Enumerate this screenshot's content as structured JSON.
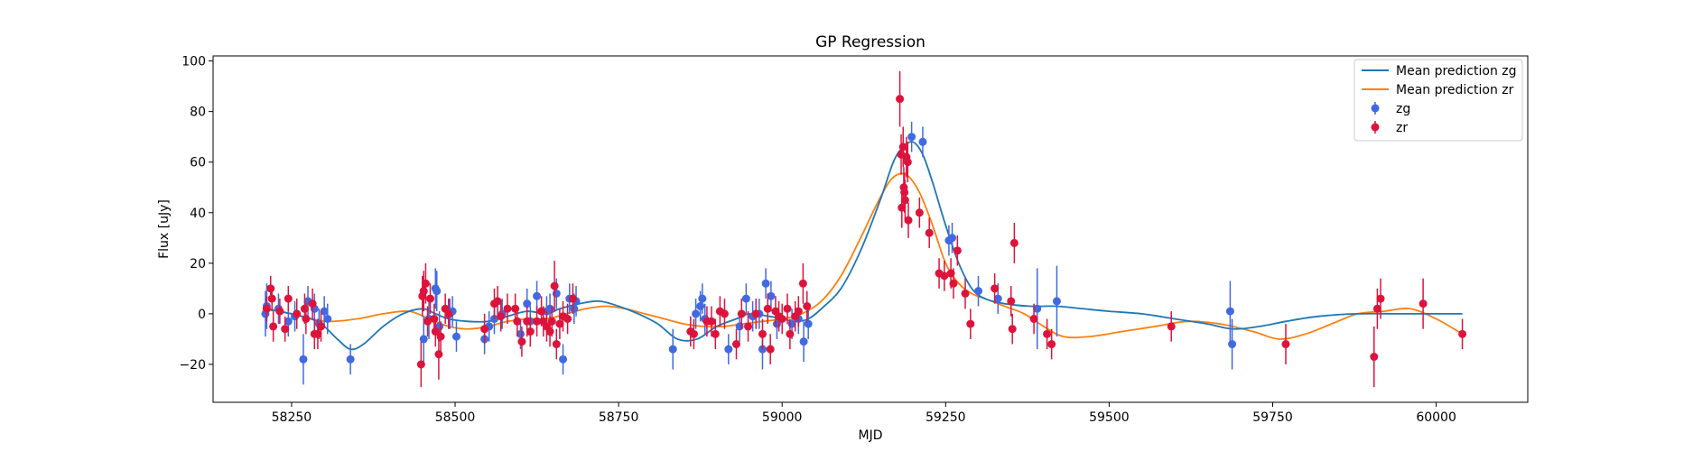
{
  "chart_data": {
    "type": "scatter",
    "title": "GP Regression",
    "xlabel": "MJD",
    "ylabel": "Flux [uJy]",
    "xlim": [
      58130,
      60140
    ],
    "ylim": [
      -35,
      102
    ],
    "xticks": [
      58250,
      58500,
      58750,
      59000,
      59250,
      59500,
      59750,
      60000
    ],
    "yticks": [
      -20,
      0,
      20,
      40,
      60,
      80,
      100
    ],
    "grid": false,
    "legend_position": "top-right",
    "colors": {
      "zg_line": "#1f77b4",
      "zr_line": "#ff7f0e",
      "zg_points": "#4169e1",
      "zr_points": "#dc143c"
    },
    "lines": [
      {
        "name": "Mean prediction zg",
        "x": [
          58210,
          58250,
          58280,
          58300,
          58320,
          58340,
          58360,
          58390,
          58420,
          58450,
          58470,
          58490,
          58520,
          58550,
          58580,
          58610,
          58640,
          58660,
          58690,
          58720,
          58750,
          58780,
          58810,
          58840,
          58870,
          58900,
          58930,
          58950,
          58980,
          59000,
          59020,
          59040,
          59060,
          59090,
          59120,
          59150,
          59170,
          59185,
          59200,
          59215,
          59230,
          59250,
          59270,
          59290,
          59310,
          59340,
          59380,
          59420,
          59460,
          59500,
          59550,
          59600,
          59650,
          59690,
          59730,
          59770,
          59820,
          59880,
          59950,
          60040
        ],
        "y": [
          2,
          0,
          -2,
          -5,
          -10,
          -14,
          -12,
          -5,
          0,
          2,
          0,
          -2,
          -3,
          -3,
          -1,
          1,
          0,
          2,
          4,
          5,
          3,
          0,
          -4,
          -10,
          -10,
          -5,
          -2,
          0,
          -1,
          -2,
          -3,
          -2,
          2,
          10,
          25,
          45,
          60,
          66,
          68,
          63,
          52,
          35,
          20,
          10,
          6,
          4,
          3,
          3,
          2,
          1,
          0,
          -2,
          -4,
          -6,
          -5,
          -3,
          -1,
          0,
          0,
          0
        ]
      },
      {
        "name": "Mean prediction zr",
        "x": [
          58210,
          58250,
          58280,
          58310,
          58350,
          58390,
          58430,
          58460,
          58490,
          58520,
          58550,
          58580,
          58610,
          58640,
          58670,
          58700,
          58730,
          58760,
          58790,
          58820,
          58850,
          58880,
          58910,
          58940,
          58970,
          59000,
          59030,
          59060,
          59090,
          59120,
          59150,
          59170,
          59190,
          59210,
          59230,
          59250,
          59270,
          59290,
          59310,
          59340,
          59370,
          59400,
          59430,
          59470,
          59520,
          59570,
          59620,
          59670,
          59720,
          59760,
          59800,
          59840,
          59880,
          59920,
          59960,
          60000,
          60040
        ],
        "y": [
          2,
          0,
          -2,
          -3,
          -2,
          0,
          1,
          -2,
          -5,
          -6,
          -5,
          -3,
          -2,
          -2,
          0,
          2,
          3,
          2,
          0,
          -2,
          -4,
          -5,
          -5,
          -4,
          -3,
          -2,
          0,
          5,
          15,
          30,
          46,
          54,
          55,
          48,
          35,
          20,
          12,
          8,
          6,
          3,
          0,
          -5,
          -9,
          -9,
          -7,
          -5,
          -3,
          -4,
          -7,
          -10,
          -8,
          -4,
          0,
          1,
          2,
          -2,
          -8
        ]
      }
    ],
    "series": [
      {
        "name": "zg",
        "points": [
          [
            58210,
            0,
            9
          ],
          [
            58212,
            3,
            9
          ],
          [
            58230,
            2,
            6
          ],
          [
            58245,
            -3,
            6
          ],
          [
            58255,
            -1,
            6
          ],
          [
            58268,
            -18,
            10
          ],
          [
            58275,
            5,
            6
          ],
          [
            58285,
            2,
            6
          ],
          [
            58292,
            -4,
            6
          ],
          [
            58300,
            1,
            6
          ],
          [
            58305,
            -2,
            6
          ],
          [
            58340,
            -18,
            6
          ],
          [
            58452,
            -10,
            9
          ],
          [
            58460,
            -2,
            8
          ],
          [
            58470,
            10,
            8
          ],
          [
            58472,
            9,
            8
          ],
          [
            58476,
            -5,
            6
          ],
          [
            58492,
            0,
            6
          ],
          [
            58496,
            1,
            6
          ],
          [
            58502,
            -9,
            6
          ],
          [
            58545,
            -10,
            6
          ],
          [
            58552,
            -5,
            6
          ],
          [
            58560,
            -2,
            6
          ],
          [
            58572,
            0,
            6
          ],
          [
            58600,
            -8,
            6
          ],
          [
            58610,
            4,
            6
          ],
          [
            58615,
            -3,
            6
          ],
          [
            58625,
            7,
            6
          ],
          [
            58640,
            1,
            6
          ],
          [
            58645,
            2,
            6
          ],
          [
            58655,
            8,
            6
          ],
          [
            58665,
            -18,
            6
          ],
          [
            58675,
            6,
            6
          ],
          [
            58682,
            2,
            6
          ],
          [
            58685,
            5,
            6
          ],
          [
            58833,
            -14,
            8
          ],
          [
            58868,
            0,
            6
          ],
          [
            58875,
            3,
            6
          ],
          [
            58878,
            6,
            6
          ],
          [
            58882,
            -2,
            6
          ],
          [
            58918,
            -14,
            6
          ],
          [
            58935,
            -5,
            6
          ],
          [
            58945,
            6,
            6
          ],
          [
            58955,
            -1,
            6
          ],
          [
            58965,
            0,
            6
          ],
          [
            58970,
            -14,
            8
          ],
          [
            58975,
            12,
            6
          ],
          [
            58983,
            7,
            6
          ],
          [
            58992,
            -4,
            6
          ],
          [
            59015,
            -4,
            6
          ],
          [
            59025,
            -2,
            6
          ],
          [
            59033,
            -11,
            8
          ],
          [
            59040,
            -4,
            6
          ],
          [
            59198,
            70,
            6
          ],
          [
            59215,
            68,
            6
          ],
          [
            59255,
            29,
            6
          ],
          [
            59260,
            30,
            6
          ],
          [
            59300,
            9,
            6
          ],
          [
            59330,
            6,
            6
          ],
          [
            59390,
            2,
            16
          ],
          [
            59420,
            5,
            14
          ],
          [
            59685,
            1,
            12
          ],
          [
            59688,
            -12,
            10
          ]
        ]
      },
      {
        "name": "zr",
        "points": [
          [
            58212,
            2,
            5
          ],
          [
            58218,
            10,
            5
          ],
          [
            58220,
            6,
            5
          ],
          [
            58222,
            -5,
            6
          ],
          [
            58232,
            1,
            5
          ],
          [
            58240,
            -6,
            5
          ],
          [
            58245,
            6,
            5
          ],
          [
            58258,
            0,
            6
          ],
          [
            58270,
            2,
            6
          ],
          [
            58272,
            -2,
            6
          ],
          [
            58282,
            4,
            6
          ],
          [
            58285,
            -8,
            6
          ],
          [
            58290,
            -8,
            6
          ],
          [
            58295,
            -5,
            6
          ],
          [
            58448,
            -20,
            9
          ],
          [
            58450,
            7,
            8
          ],
          [
            58452,
            9,
            8
          ],
          [
            58455,
            12,
            8
          ],
          [
            58458,
            -3,
            6
          ],
          [
            58462,
            6,
            6
          ],
          [
            58468,
            -2,
            6
          ],
          [
            58470,
            -7,
            6
          ],
          [
            58475,
            -16,
            10
          ],
          [
            58478,
            -9,
            6
          ],
          [
            58485,
            2,
            6
          ],
          [
            58490,
            0,
            6
          ],
          [
            58545,
            -6,
            6
          ],
          [
            58560,
            4,
            6
          ],
          [
            58565,
            5,
            6
          ],
          [
            58570,
            -1,
            6
          ],
          [
            58580,
            2,
            6
          ],
          [
            58592,
            2,
            6
          ],
          [
            58595,
            -3,
            6
          ],
          [
            58602,
            -11,
            6
          ],
          [
            58610,
            -3,
            6
          ],
          [
            58615,
            -7,
            6
          ],
          [
            58625,
            -3,
            6
          ],
          [
            58632,
            1,
            6
          ],
          [
            58635,
            -3,
            6
          ],
          [
            58640,
            -5,
            6
          ],
          [
            58645,
            -7,
            6
          ],
          [
            58648,
            -3,
            6
          ],
          [
            58652,
            11,
            10
          ],
          [
            58655,
            -12,
            6
          ],
          [
            58660,
            -4,
            6
          ],
          [
            58665,
            -1,
            6
          ],
          [
            58672,
            -2,
            6
          ],
          [
            58680,
            6,
            6
          ],
          [
            58860,
            -7,
            6
          ],
          [
            58865,
            -8,
            6
          ],
          [
            58885,
            -3,
            6
          ],
          [
            58892,
            -3,
            6
          ],
          [
            58898,
            -8,
            6
          ],
          [
            58905,
            1,
            6
          ],
          [
            58912,
            0,
            6
          ],
          [
            58930,
            -12,
            6
          ],
          [
            58938,
            0,
            6
          ],
          [
            58948,
            -5,
            6
          ],
          [
            58960,
            0,
            6
          ],
          [
            58970,
            -8,
            6
          ],
          [
            58978,
            2,
            6
          ],
          [
            58982,
            -14,
            6
          ],
          [
            58990,
            1,
            6
          ],
          [
            58995,
            -1,
            6
          ],
          [
            59000,
            -2,
            6
          ],
          [
            59008,
            2,
            6
          ],
          [
            59012,
            -8,
            6
          ],
          [
            59020,
            -1,
            6
          ],
          [
            59025,
            1,
            6
          ],
          [
            59032,
            12,
            8
          ],
          [
            59038,
            3,
            6
          ],
          [
            59180,
            85,
            11
          ],
          [
            59182,
            63,
            8
          ],
          [
            59183,
            42,
            8
          ],
          [
            59185,
            66,
            8
          ],
          [
            59186,
            50,
            8
          ],
          [
            59187,
            48,
            8
          ],
          [
            59188,
            45,
            8
          ],
          [
            59190,
            62,
            8
          ],
          [
            59192,
            60,
            8
          ],
          [
            59193,
            37,
            7
          ],
          [
            59210,
            40,
            6
          ],
          [
            59225,
            32,
            6
          ],
          [
            59240,
            16,
            6
          ],
          [
            59248,
            15,
            6
          ],
          [
            59258,
            16,
            6
          ],
          [
            59262,
            12,
            6
          ],
          [
            59268,
            25,
            6
          ],
          [
            59280,
            8,
            6
          ],
          [
            59288,
            -4,
            6
          ],
          [
            59325,
            10,
            6
          ],
          [
            59350,
            5,
            6
          ],
          [
            59352,
            -6,
            6
          ],
          [
            59355,
            28,
            8
          ],
          [
            59385,
            -2,
            6
          ],
          [
            59405,
            -8,
            6
          ],
          [
            59412,
            -12,
            6
          ],
          [
            59595,
            -5,
            6
          ],
          [
            59770,
            -12,
            8
          ],
          [
            59905,
            -17,
            12
          ],
          [
            59910,
            2,
            8
          ],
          [
            59915,
            6,
            8
          ],
          [
            59980,
            4,
            10
          ],
          [
            60040,
            -8,
            6
          ]
        ]
      }
    ]
  }
}
